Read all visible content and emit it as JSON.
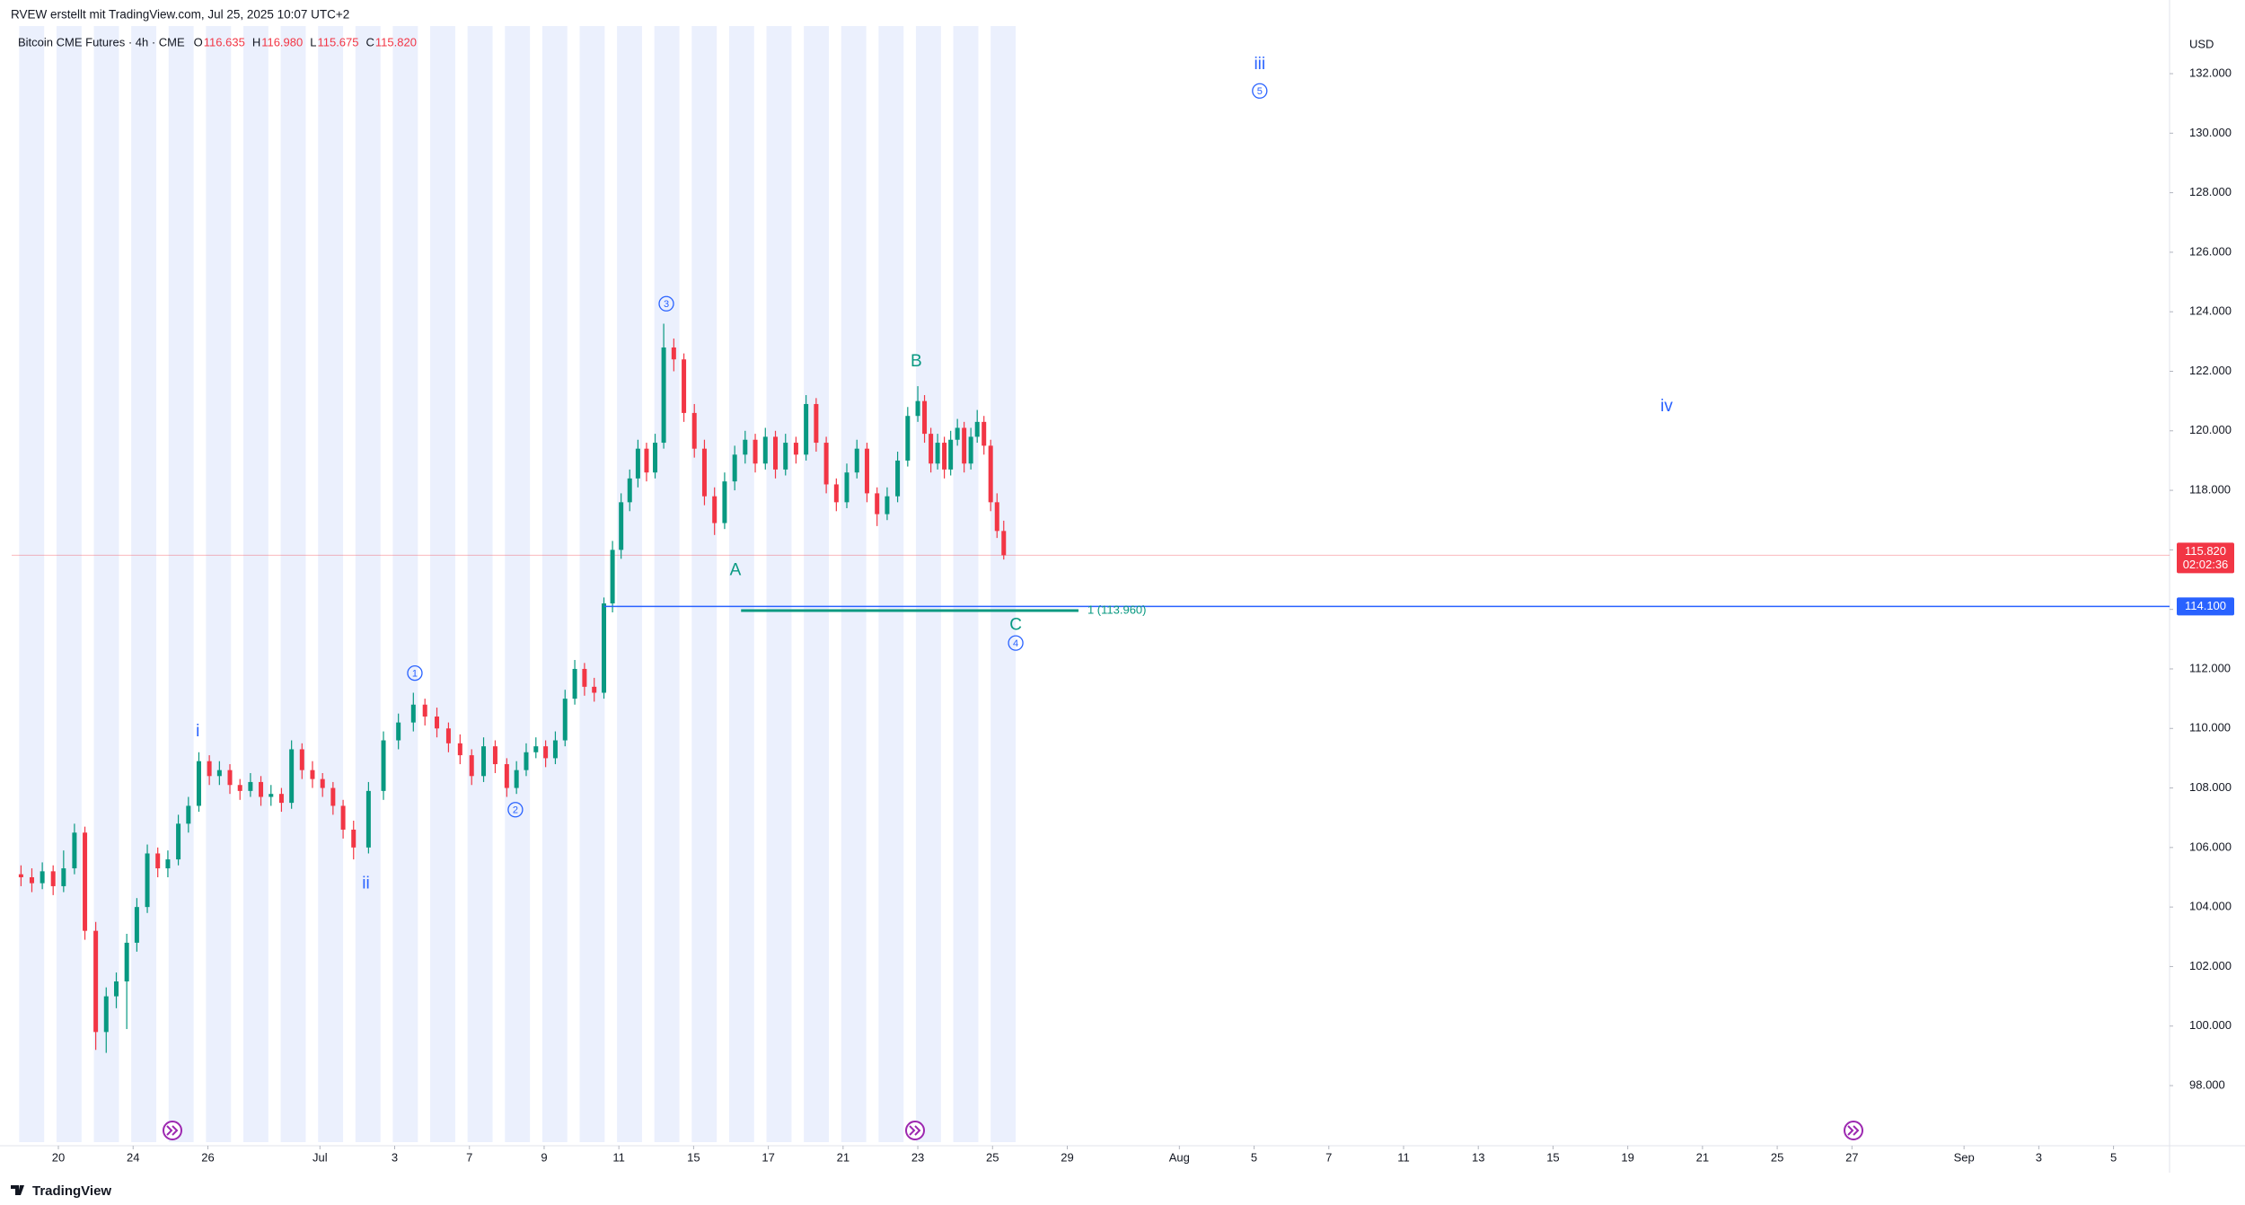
{
  "header": {
    "attribution": "RVEW erstellt mit TradingView.com, Jul 25, 2025 10:07 UTC+2",
    "logo": "TradingView"
  },
  "chart_data": {
    "type": "candlestick",
    "title": "Bitcoin CME Futures · 4h · CME",
    "ohlc_legend": [
      {
        "key": "O",
        "value": "116.635"
      },
      {
        "key": "H",
        "value": "116.980"
      },
      {
        "key": "L",
        "value": "115.675"
      },
      {
        "key": "C",
        "value": "115.820"
      }
    ],
    "currency": "USD",
    "up_color": "#089981",
    "down_color": "#f23645",
    "x": [
      -1,
      -0.71,
      -0.43,
      -0.14,
      0.14,
      0.43,
      0.71,
      1.0,
      1.28,
      1.55,
      1.83,
      2.1,
      2.38,
      2.66,
      2.93,
      3.21,
      3.48,
      3.76,
      4.04,
      4.31,
      4.59,
      4.86,
      5.14,
      5.42,
      5.69,
      5.97,
      6.24,
      6.52,
      6.8,
      7.07,
      7.35,
      7.62,
      7.9,
      8.3,
      8.7,
      9.1,
      9.5,
      9.81,
      10.13,
      10.44,
      10.75,
      11.06,
      11.38,
      11.69,
      12.0,
      12.26,
      12.52,
      12.78,
      13.04,
      13.3,
      13.56,
      13.82,
      14.08,
      14.34,
      14.6,
      14.83,
      15.06,
      15.29,
      15.51,
      15.74,
      15.97,
      16.2,
      16.47,
      16.74,
      17.02,
      17.29,
      17.56,
      17.83,
      18.1,
      18.38,
      18.65,
      18.92,
      19.19,
      19.46,
      19.74,
      20.01,
      20.28,
      20.55,
      20.82,
      21.1,
      21.37,
      21.64,
      21.91,
      22.18,
      22.46,
      22.73,
      23.0,
      23.18,
      23.35,
      23.53,
      23.71,
      23.88,
      24.06,
      24.24,
      24.42,
      24.59,
      24.77,
      24.95,
      25.12,
      25.3
    ],
    "ohlc": [
      [
        105.1,
        105.4,
        104.7,
        105.0
      ],
      [
        105.0,
        105.3,
        104.5,
        104.8
      ],
      [
        104.8,
        105.5,
        104.6,
        105.2
      ],
      [
        105.2,
        105.4,
        104.4,
        104.7
      ],
      [
        104.7,
        105.9,
        104.5,
        105.3
      ],
      [
        105.3,
        106.8,
        105.1,
        106.5
      ],
      [
        106.5,
        106.7,
        102.9,
        103.2
      ],
      [
        103.2,
        103.5,
        99.2,
        99.8
      ],
      [
        99.8,
        101.3,
        99.1,
        101.0
      ],
      [
        101.0,
        101.8,
        100.6,
        101.5
      ],
      [
        101.5,
        103.1,
        99.9,
        102.8
      ],
      [
        102.8,
        104.3,
        102.5,
        104.0
      ],
      [
        104.0,
        106.1,
        103.8,
        105.8
      ],
      [
        105.8,
        106.0,
        105.0,
        105.3
      ],
      [
        105.3,
        105.9,
        105.0,
        105.6
      ],
      [
        105.6,
        107.1,
        105.4,
        106.8
      ],
      [
        106.8,
        107.7,
        106.5,
        107.4
      ],
      [
        107.4,
        109.2,
        107.2,
        108.9
      ],
      [
        108.9,
        109.1,
        108.1,
        108.4
      ],
      [
        108.4,
        108.9,
        108.1,
        108.6
      ],
      [
        108.6,
        108.8,
        107.8,
        108.1
      ],
      [
        108.1,
        108.3,
        107.6,
        107.9
      ],
      [
        107.9,
        108.5,
        107.7,
        108.2
      ],
      [
        108.2,
        108.4,
        107.4,
        107.7
      ],
      [
        107.7,
        108.1,
        107.4,
        107.8
      ],
      [
        107.8,
        108.0,
        107.2,
        107.5
      ],
      [
        107.5,
        109.6,
        107.3,
        109.3
      ],
      [
        109.3,
        109.5,
        108.3,
        108.6
      ],
      [
        108.6,
        108.9,
        108.0,
        108.3
      ],
      [
        108.3,
        108.5,
        107.7,
        108.0
      ],
      [
        108.0,
        108.2,
        107.1,
        107.4
      ],
      [
        107.4,
        107.6,
        106.3,
        106.6
      ],
      [
        106.6,
        106.9,
        105.6,
        106.0
      ],
      [
        106.0,
        108.2,
        105.8,
        107.9
      ],
      [
        107.9,
        109.9,
        107.6,
        109.6
      ],
      [
        109.6,
        110.5,
        109.3,
        110.2
      ],
      [
        110.2,
        111.2,
        109.9,
        110.8
      ],
      [
        110.8,
        111.0,
        110.1,
        110.4
      ],
      [
        110.4,
        110.7,
        109.7,
        110.0
      ],
      [
        110.0,
        110.2,
        109.2,
        109.5
      ],
      [
        109.5,
        109.8,
        108.8,
        109.1
      ],
      [
        109.1,
        109.3,
        108.1,
        108.4
      ],
      [
        108.4,
        109.7,
        108.2,
        109.4
      ],
      [
        109.4,
        109.6,
        108.5,
        108.8
      ],
      [
        108.8,
        109.0,
        107.7,
        108.0
      ],
      [
        108.0,
        108.9,
        107.8,
        108.6
      ],
      [
        108.6,
        109.5,
        108.4,
        109.2
      ],
      [
        109.2,
        109.7,
        109.0,
        109.4
      ],
      [
        109.4,
        109.6,
        108.7,
        109.0
      ],
      [
        109.0,
        109.9,
        108.8,
        109.6
      ],
      [
        109.6,
        111.3,
        109.4,
        111.0
      ],
      [
        111.0,
        112.3,
        110.8,
        112.0
      ],
      [
        112.0,
        112.2,
        111.1,
        111.4
      ],
      [
        111.4,
        111.7,
        110.9,
        111.2
      ],
      [
        111.2,
        114.4,
        111.0,
        114.2
      ],
      [
        114.2,
        116.3,
        113.9,
        116.0
      ],
      [
        116.0,
        117.9,
        115.7,
        117.6
      ],
      [
        117.6,
        118.7,
        117.3,
        118.4
      ],
      [
        118.4,
        119.7,
        118.1,
        119.4
      ],
      [
        119.4,
        119.6,
        118.3,
        118.6
      ],
      [
        118.6,
        119.9,
        118.4,
        119.6
      ],
      [
        119.6,
        123.6,
        119.4,
        122.8
      ],
      [
        122.8,
        123.1,
        122.0,
        122.4
      ],
      [
        122.4,
        122.6,
        120.3,
        120.6
      ],
      [
        120.6,
        120.9,
        119.1,
        119.4
      ],
      [
        119.4,
        119.7,
        117.5,
        117.8
      ],
      [
        117.8,
        118.1,
        116.5,
        116.9
      ],
      [
        116.9,
        118.6,
        116.7,
        118.3
      ],
      [
        118.3,
        119.5,
        118.0,
        119.2
      ],
      [
        119.2,
        120.0,
        118.9,
        119.7
      ],
      [
        119.7,
        119.9,
        118.6,
        118.9
      ],
      [
        118.9,
        120.1,
        118.7,
        119.8
      ],
      [
        119.8,
        120.0,
        118.4,
        118.7
      ],
      [
        118.7,
        119.9,
        118.5,
        119.6
      ],
      [
        119.6,
        119.8,
        118.9,
        119.2
      ],
      [
        119.2,
        121.2,
        119.0,
        120.9
      ],
      [
        120.9,
        121.1,
        119.3,
        119.6
      ],
      [
        119.6,
        119.8,
        117.9,
        118.2
      ],
      [
        118.2,
        118.4,
        117.3,
        117.6
      ],
      [
        117.6,
        118.9,
        117.4,
        118.6
      ],
      [
        118.6,
        119.7,
        118.4,
        119.4
      ],
      [
        119.4,
        119.6,
        117.6,
        117.9
      ],
      [
        117.9,
        118.1,
        116.8,
        117.2
      ],
      [
        117.2,
        118.1,
        117.0,
        117.8
      ],
      [
        117.8,
        119.3,
        117.6,
        119.0
      ],
      [
        119.0,
        120.8,
        118.8,
        120.5
      ],
      [
        120.5,
        121.5,
        120.3,
        121.0
      ],
      [
        121.0,
        121.2,
        119.6,
        119.9
      ],
      [
        119.9,
        120.1,
        118.6,
        118.9
      ],
      [
        118.9,
        119.9,
        118.7,
        119.6
      ],
      [
        119.6,
        119.8,
        118.4,
        118.7
      ],
      [
        118.7,
        120.0,
        118.5,
        119.7
      ],
      [
        119.7,
        120.4,
        119.5,
        120.1
      ],
      [
        120.1,
        120.3,
        118.6,
        118.9
      ],
      [
        118.9,
        120.1,
        118.7,
        119.8
      ],
      [
        119.8,
        120.7,
        119.6,
        120.3
      ],
      [
        120.3,
        120.5,
        119.2,
        119.5
      ],
      [
        119.5,
        119.7,
        117.3,
        117.6
      ],
      [
        117.6,
        117.9,
        116.4,
        116.635
      ],
      [
        116.635,
        116.98,
        115.675,
        115.82
      ]
    ],
    "xlim": [
      -1.25,
      56.5
    ],
    "xticks": [
      {
        "value": 0,
        "label": "20"
      },
      {
        "value": 2,
        "label": "24"
      },
      {
        "value": 4,
        "label": "26"
      },
      {
        "value": 7,
        "label": "Jul"
      },
      {
        "value": 9,
        "label": "3"
      },
      {
        "value": 11,
        "label": "7"
      },
      {
        "value": 13,
        "label": "9"
      },
      {
        "value": 15,
        "label": "11"
      },
      {
        "value": 17,
        "label": "15"
      },
      {
        "value": 19,
        "label": "17"
      },
      {
        "value": 21,
        "label": "21"
      },
      {
        "value": 23,
        "label": "23"
      },
      {
        "value": 25,
        "label": "25"
      },
      {
        "value": 27,
        "label": "29"
      },
      {
        "value": 30,
        "label": "Aug"
      },
      {
        "value": 32,
        "label": "5"
      },
      {
        "value": 34,
        "label": "7"
      },
      {
        "value": 36,
        "label": "11"
      },
      {
        "value": 38,
        "label": "13"
      },
      {
        "value": 40,
        "label": "15"
      },
      {
        "value": 42,
        "label": "19"
      },
      {
        "value": 44,
        "label": "21"
      },
      {
        "value": 46,
        "label": "25"
      },
      {
        "value": 48,
        "label": "27"
      },
      {
        "value": 51,
        "label": "Sep"
      },
      {
        "value": 53,
        "label": "3"
      },
      {
        "value": 55,
        "label": "5"
      }
    ],
    "ylim": [
      96.1,
      133.6
    ],
    "yticks": [
      {
        "value": 98,
        "label": "98.000"
      },
      {
        "value": 100,
        "label": "100.000"
      },
      {
        "value": 102,
        "label": "102.000"
      },
      {
        "value": 104,
        "label": "104.000"
      },
      {
        "value": 106,
        "label": "106.000"
      },
      {
        "value": 108,
        "label": "108.000"
      },
      {
        "value": 110,
        "label": "110.000"
      },
      {
        "value": 112,
        "label": "112.000"
      },
      {
        "value": 114,
        "label": "114.000"
      },
      {
        "value": 116,
        "label": "116.000"
      },
      {
        "value": 118,
        "label": "118.000"
      },
      {
        "value": 120,
        "label": "120.000"
      },
      {
        "value": 122,
        "label": "122.000"
      },
      {
        "value": 124,
        "label": "124.000"
      },
      {
        "value": 126,
        "label": "126.000"
      },
      {
        "value": 128,
        "label": "128.000"
      },
      {
        "value": 130,
        "label": "130.000"
      },
      {
        "value": 132,
        "label": "132.000"
      }
    ],
    "last_price": {
      "value": 115.82,
      "label": "115.820",
      "countdown": "02:02:36"
    },
    "lines": [
      {
        "value": 114.1,
        "label": "114.100",
        "x_start": 14.6,
        "color": "#2962ff",
        "label_position": "axis"
      },
      {
        "value": 113.96,
        "label": "1 (113.960)",
        "x_start": 18.27,
        "x_end": 27.3,
        "color": "#089981",
        "label_position": "end"
      }
    ],
    "annotations": [
      {
        "text": "iii",
        "x": 32.15,
        "y": 132.34,
        "color": "#2962ff",
        "circled": false
      },
      {
        "text": "5",
        "x": 32.15,
        "y": 131.42,
        "color": "#2962ff",
        "circled": true
      },
      {
        "text": "3",
        "x": 16.27,
        "y": 124.27,
        "color": "#2962ff",
        "circled": true
      },
      {
        "text": "B",
        "x": 22.96,
        "y": 122.34,
        "color": "#089981",
        "circled": false
      },
      {
        "text": "iv",
        "x": 43.04,
        "y": 120.84,
        "color": "#2962ff",
        "circled": false
      },
      {
        "text": "A",
        "x": 18.12,
        "y": 115.33,
        "color": "#089981",
        "circled": false
      },
      {
        "text": "C",
        "x": 25.62,
        "y": 113.5,
        "color": "#089981",
        "circled": false
      },
      {
        "text": "4",
        "x": 25.62,
        "y": 112.87,
        "color": "#2962ff",
        "circled": true
      },
      {
        "text": "1",
        "x": 9.54,
        "y": 111.86,
        "color": "#2962ff",
        "circled": true
      },
      {
        "text": "i",
        "x": 3.73,
        "y": 109.92,
        "color": "#2962ff",
        "circled": false
      },
      {
        "text": "2",
        "x": 12.23,
        "y": 107.27,
        "color": "#2962ff",
        "circled": true
      },
      {
        "text": "ii",
        "x": 8.23,
        "y": 104.8,
        "color": "#2962ff",
        "circled": false
      }
    ]
  }
}
